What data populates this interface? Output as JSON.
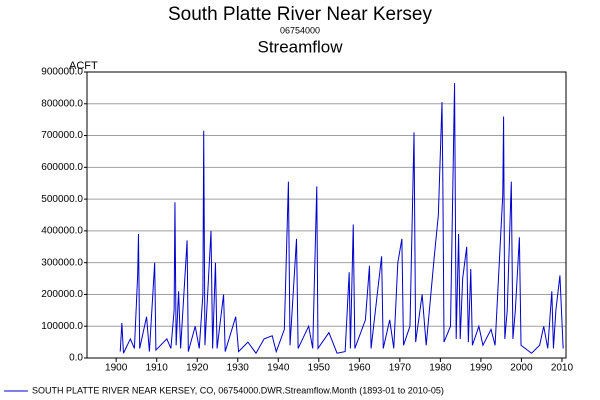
{
  "chart_data": {
    "type": "line",
    "title": "South Platte River Near Kersey",
    "subtitle": "06754000",
    "subtitle2": "Streamflow",
    "y_label": "ACFT",
    "x": [
      1901.0,
      1901.4,
      1901.8,
      1903.5,
      1904.5,
      1905.3,
      1905.5,
      1905.8,
      1907.5,
      1908.2,
      1909.5,
      1909.8,
      1912.5,
      1913.5,
      1914.3,
      1914.5,
      1914.8,
      1915.4,
      1915.9,
      1917.5,
      1917.8,
      1919.5,
      1920.5,
      1921.4,
      1921.6,
      1921.9,
      1923.4,
      1923.8,
      1924.5,
      1924.9,
      1926.5,
      1926.9,
      1929.5,
      1930.2,
      1932.5,
      1934.5,
      1936.5,
      1938.5,
      1939.5,
      1941.5,
      1942.5,
      1942.9,
      1944.5,
      1944.9,
      1947.5,
      1948.5,
      1949.5,
      1949.8,
      1952.5,
      1954.5,
      1956.5,
      1957.5,
      1957.8,
      1958.5,
      1958.9,
      1961.5,
      1962.5,
      1962.9,
      1965.5,
      1965.9,
      1967.5,
      1968.5,
      1969.5,
      1970.5,
      1970.9,
      1972.5,
      1973.5,
      1973.9,
      1975.5,
      1976.5,
      1978.5,
      1979.5,
      1980.4,
      1980.6,
      1980.9,
      1982.5,
      1983.5,
      1983.9,
      1984.5,
      1984.9,
      1985.5,
      1986.5,
      1986.9,
      1987.5,
      1987.9,
      1989.5,
      1990.5,
      1992.5,
      1993.5,
      1995.4,
      1995.6,
      1995.9,
      1996.5,
      1997.5,
      1997.9,
      1998.5,
      1999.5,
      1999.9,
      2002.5,
      2004.5,
      2005.5,
      2006.5,
      2007.5,
      2007.9,
      2008.5,
      2009.5,
      2010.3
    ],
    "series": [
      {
        "name": "SOUTH PLATTE RIVER NEAR KERSEY, CO, 06754000.DWR.Streamflow.Month (1893-01 to 2010-05)",
        "color": "#0000cc",
        "values": [
          20000,
          110000,
          15000,
          60000,
          30000,
          260000,
          390000,
          30000,
          130000,
          20000,
          300000,
          25000,
          60000,
          30000,
          150000,
          490000,
          40000,
          210000,
          30000,
          370000,
          20000,
          100000,
          30000,
          200000,
          715000,
          40000,
          400000,
          30000,
          300000,
          30000,
          200000,
          20000,
          130000,
          20000,
          50000,
          15000,
          60000,
          70000,
          20000,
          90000,
          555000,
          40000,
          375000,
          30000,
          100000,
          30000,
          540000,
          30000,
          80000,
          15000,
          20000,
          270000,
          30000,
          420000,
          30000,
          120000,
          290000,
          30000,
          320000,
          30000,
          120000,
          30000,
          300000,
          375000,
          40000,
          100000,
          710000,
          50000,
          200000,
          40000,
          320000,
          450000,
          805000,
          570000,
          50000,
          100000,
          865000,
          60000,
          390000,
          60000,
          250000,
          350000,
          50000,
          280000,
          40000,
          100000,
          40000,
          90000,
          40000,
          515000,
          760000,
          60000,
          150000,
          555000,
          60000,
          150000,
          380000,
          40000,
          15000,
          40000,
          100000,
          30000,
          210000,
          30000,
          150000,
          260000,
          30000
        ]
      }
    ],
    "xlim": [
      1892.8,
      2011
    ],
    "xticks": [
      1900,
      1910,
      1920,
      1930,
      1940,
      1950,
      1960,
      1970,
      1980,
      1990,
      2000,
      2010
    ],
    "ylim": [
      0,
      900000
    ],
    "yticks": [
      {
        "value": 0,
        "label": "0.0"
      },
      {
        "value": 100000,
        "label": "100000.0"
      },
      {
        "value": 200000,
        "label": "200000.0"
      },
      {
        "value": 300000,
        "label": "300000.0"
      },
      {
        "value": 400000,
        "label": "400000.0"
      },
      {
        "value": 500000,
        "label": "500000.0"
      },
      {
        "value": 600000,
        "label": "600000.0"
      },
      {
        "value": 700000,
        "label": "700000.0"
      },
      {
        "value": 800000,
        "label": "800000.0"
      },
      {
        "value": 900000,
        "label": "900000.0"
      }
    ],
    "grid": true
  }
}
